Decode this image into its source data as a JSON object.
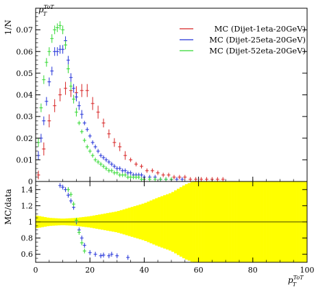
{
  "chart_data": [
    {
      "type": "scatter",
      "panel": "main",
      "ylabel": "1/N",
      "xlabel": "",
      "title_label": "p_T^{ToT}",
      "xlim": [
        0,
        100
      ],
      "ylim": [
        0,
        0.08
      ],
      "x_ticks": [
        0,
        20,
        40,
        60,
        80,
        100
      ],
      "y_ticks": [
        0,
        0.01,
        0.02,
        0.03,
        0.04,
        0.05,
        0.06,
        0.07
      ],
      "y_tick_labels": [
        "0",
        "0.01",
        "0.02",
        "0.03",
        "0.04",
        "0.05",
        "0.06",
        "0.07"
      ],
      "legend": {
        "position": "top-right"
      },
      "series": [
        {
          "name": "MC (Dijet-1eta-20GeV)",
          "color": "#d62020",
          "x": [
            1,
            3,
            5,
            7,
            9,
            11,
            13,
            15,
            17,
            19,
            21,
            23,
            25,
            27,
            29,
            31,
            33,
            35,
            37,
            39,
            41,
            43,
            45,
            47,
            49,
            51,
            53,
            55,
            57,
            59,
            61,
            63,
            65,
            67,
            69
          ],
          "y": [
            0.003,
            0.015,
            0.028,
            0.035,
            0.04,
            0.043,
            0.042,
            0.041,
            0.042,
            0.042,
            0.036,
            0.032,
            0.027,
            0.022,
            0.018,
            0.016,
            0.012,
            0.01,
            0.008,
            0.007,
            0.005,
            0.005,
            0.004,
            0.003,
            0.003,
            0.002,
            0.002,
            0.002,
            0.001,
            0.001,
            0.001,
            0.001,
            0.001,
            0.001,
            0.001
          ],
          "err": [
            0.002,
            0.003,
            0.003,
            0.003,
            0.003,
            0.003,
            0.003,
            0.003,
            0.003,
            0.003,
            0.003,
            0.003,
            0.002,
            0.002,
            0.002,
            0.002,
            0.002,
            0.001,
            0.001,
            0.001,
            0.001,
            0.001,
            0.001,
            0.001,
            0.001,
            0.001,
            0.001,
            0.001,
            0.001,
            0.001,
            0.001,
            0.001,
            0.001,
            0.001,
            0.001
          ]
        },
        {
          "name": "MC (Dijet-25eta-20GeV)",
          "color": "#1f2fd8",
          "x": [
            1,
            2,
            3,
            4,
            5,
            6,
            7,
            8,
            9,
            10,
            11,
            12,
            13,
            14,
            15,
            16,
            17,
            18,
            19,
            20,
            21,
            22,
            23,
            24,
            25,
            26,
            27,
            28,
            29,
            30,
            31,
            32,
            33,
            34,
            35,
            36,
            37,
            38,
            39,
            40,
            42,
            44,
            46,
            48,
            50,
            52,
            54
          ],
          "y": [
            0.012,
            0.02,
            0.028,
            0.037,
            0.046,
            0.051,
            0.06,
            0.06,
            0.061,
            0.061,
            0.065,
            0.056,
            0.048,
            0.043,
            0.039,
            0.035,
            0.031,
            0.027,
            0.024,
            0.021,
            0.018,
            0.016,
            0.014,
            0.012,
            0.011,
            0.01,
            0.009,
            0.008,
            0.007,
            0.006,
            0.006,
            0.005,
            0.005,
            0.004,
            0.004,
            0.003,
            0.003,
            0.003,
            0.003,
            0.002,
            0.002,
            0.002,
            0.001,
            0.001,
            0.001,
            0.001,
            0.001
          ],
          "err": [
            0.002,
            0.002,
            0.002,
            0.002,
            0.002,
            0.002,
            0.002,
            0.002,
            0.002,
            0.002,
            0.002,
            0.002,
            0.002,
            0.002,
            0.002,
            0.002,
            0.002,
            0.001,
            0.001,
            0.001,
            0.001,
            0.001,
            0.001,
            0.001,
            0.001,
            0.001,
            0.001,
            0.001,
            0.001,
            0.001,
            0.001,
            0.001,
            0.001,
            0.001,
            0.001,
            0.001,
            0.001,
            0.001,
            0.001,
            0.001,
            0.001,
            0.001,
            0.001,
            0.001,
            0.001,
            0.001,
            0.001
          ]
        },
        {
          "name": "MC (Dijet-52eta-20GeV)",
          "color": "#2ed82e",
          "x": [
            1,
            2,
            3,
            4,
            5,
            6,
            7,
            8,
            9,
            10,
            11,
            12,
            13,
            14,
            15,
            16,
            17,
            18,
            19,
            20,
            21,
            22,
            23,
            24,
            25,
            26,
            27,
            28,
            29,
            30,
            31,
            32,
            33,
            34,
            35,
            36,
            37,
            38,
            39,
            40,
            42,
            44,
            46,
            48,
            50
          ],
          "y": [
            0.018,
            0.034,
            0.047,
            0.055,
            0.06,
            0.066,
            0.07,
            0.071,
            0.072,
            0.07,
            0.063,
            0.052,
            0.044,
            0.038,
            0.032,
            0.027,
            0.023,
            0.019,
            0.016,
            0.014,
            0.012,
            0.01,
            0.009,
            0.008,
            0.007,
            0.006,
            0.005,
            0.005,
            0.004,
            0.004,
            0.003,
            0.003,
            0.003,
            0.002,
            0.002,
            0.002,
            0.002,
            0.002,
            0.001,
            0.001,
            0.001,
            0.001,
            0.001,
            0.001,
            0.001
          ],
          "err": [
            0.002,
            0.002,
            0.002,
            0.002,
            0.002,
            0.002,
            0.002,
            0.002,
            0.002,
            0.002,
            0.002,
            0.002,
            0.002,
            0.002,
            0.002,
            0.001,
            0.001,
            0.001,
            0.001,
            0.001,
            0.001,
            0.001,
            0.001,
            0.001,
            0.001,
            0.001,
            0.001,
            0.001,
            0.001,
            0.001,
            0.001,
            0.001,
            0.001,
            0.001,
            0.001,
            0.001,
            0.001,
            0.001,
            0.001,
            0.001,
            0.001,
            0.001,
            0.001,
            0.001,
            0.001
          ]
        }
      ]
    },
    {
      "type": "scatter",
      "panel": "ratio",
      "ylabel": "MC/data",
      "xlabel": "p_T^{ToT}",
      "xlim": [
        0,
        100
      ],
      "ylim": [
        0.5,
        1.5
      ],
      "x_ticks": [
        0,
        20,
        40,
        60,
        80,
        100
      ],
      "x_tick_labels": [
        "0",
        "20",
        "40",
        "60",
        "80",
        "100"
      ],
      "y_ticks": [
        0.6,
        0.8,
        1,
        1.2,
        1.4
      ],
      "y_tick_labels": [
        "0.6",
        "0.8",
        "1",
        "1.2",
        "1.4"
      ],
      "reference_line": 1,
      "uncertainty_band": {
        "color": "#ffff00",
        "x": [
          0,
          5,
          10,
          15,
          20,
          25,
          30,
          35,
          40,
          45,
          50,
          52,
          55,
          58,
          60,
          65,
          70,
          75,
          80,
          85,
          90,
          95,
          100
        ],
        "half_width": [
          0.08,
          0.05,
          0.04,
          0.05,
          0.07,
          0.1,
          0.13,
          0.18,
          0.23,
          0.3,
          0.36,
          0.4,
          0.46,
          0.5,
          0.5,
          0.5,
          0.5,
          0.5,
          0.5,
          0.5,
          0.5,
          0.5,
          0.5
        ]
      },
      "series": [
        {
          "name": "MC (Dijet-25eta-20GeV)",
          "color": "#1f2fd8",
          "x": [
            9,
            10,
            11,
            12,
            13,
            14,
            15,
            16,
            17,
            18,
            20,
            22,
            24,
            25,
            27,
            28,
            30,
            34
          ],
          "y": [
            1.45,
            1.43,
            1.4,
            1.33,
            1.26,
            1.18,
            1.0,
            0.9,
            0.8,
            0.71,
            0.62,
            0.6,
            0.58,
            0.59,
            0.58,
            0.6,
            0.58,
            0.56
          ],
          "err": [
            0.03,
            0.03,
            0.03,
            0.03,
            0.03,
            0.03,
            0.03,
            0.03,
            0.03,
            0.03,
            0.03,
            0.03,
            0.03,
            0.03,
            0.03,
            0.03,
            0.03,
            0.03
          ]
        },
        {
          "name": "MC (Dijet-52eta-20GeV)",
          "color": "#2ed82e",
          "x": [
            12,
            13,
            14,
            15,
            16,
            17,
            18
          ],
          "y": [
            1.4,
            1.34,
            1.22,
            1.02,
            0.87,
            0.74,
            0.64
          ],
          "err": [
            0.03,
            0.03,
            0.03,
            0.03,
            0.03,
            0.03,
            0.03
          ]
        }
      ]
    }
  ]
}
